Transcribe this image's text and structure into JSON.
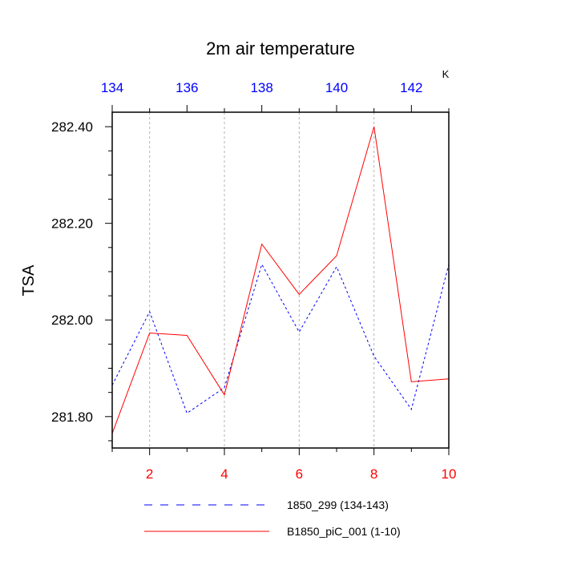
{
  "chart_data": {
    "type": "line",
    "title": "2m air temperature",
    "ylabel": "TSA",
    "units": "K",
    "ylim": [
      281.735,
      282.43
    ],
    "yticks": [
      {
        "value": 281.8,
        "label": "281.80"
      },
      {
        "value": 282.0,
        "label": "282.00"
      },
      {
        "value": 282.2,
        "label": "282.20"
      },
      {
        "value": 282.4,
        "label": "282.40"
      }
    ],
    "bottom_axis": {
      "range": [
        1,
        10
      ],
      "ticks": [
        "2",
        "4",
        "6",
        "8",
        "10"
      ],
      "tick_values": [
        2,
        4,
        6,
        8,
        10
      ],
      "color": "#ff0000"
    },
    "top_axis": {
      "range": [
        134,
        143
      ],
      "ticks": [
        "134",
        "136",
        "138",
        "140",
        "142"
      ],
      "tick_values": [
        134,
        136,
        138,
        140,
        142
      ],
      "color": "#0000ff"
    },
    "grid": "vertical-dashed",
    "legend_position": "bottom",
    "series": [
      {
        "name": "1850_299 (134-143)",
        "axis": "top",
        "color": "#0000ff",
        "dash": "dashed",
        "x": [
          134,
          135,
          136,
          137,
          138,
          139,
          140,
          141,
          142,
          143
        ],
        "values": [
          281.865,
          282.017,
          281.807,
          281.86,
          282.115,
          281.975,
          282.11,
          281.925,
          281.815,
          282.115
        ]
      },
      {
        "name": "B1850_piC_001 (1-10)",
        "axis": "bottom",
        "color": "#ff0000",
        "dash": "solid",
        "x": [
          1,
          2,
          3,
          4,
          5,
          6,
          7,
          8,
          9,
          10
        ],
        "values": [
          281.765,
          281.973,
          281.968,
          281.845,
          282.157,
          282.053,
          282.133,
          282.4,
          281.872,
          281.878
        ]
      }
    ]
  }
}
